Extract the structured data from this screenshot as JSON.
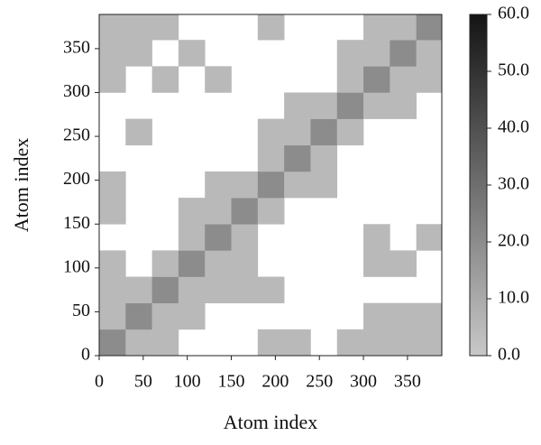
{
  "chart_data": {
    "type": "heatmap",
    "xlabel": "Atom index",
    "ylabel": "Atom index",
    "x_bins": [
      0,
      30,
      60,
      90,
      120,
      150,
      180,
      210,
      240,
      270,
      300,
      330,
      360,
      389
    ],
    "y_bins": [
      0,
      30,
      60,
      90,
      120,
      150,
      180,
      210,
      240,
      270,
      300,
      330,
      360,
      389
    ],
    "z": [
      [
        20,
        5,
        5,
        null,
        null,
        null,
        5,
        5,
        null,
        5,
        5,
        5,
        5
      ],
      [
        5,
        20,
        5,
        5,
        null,
        null,
        null,
        null,
        null,
        null,
        5,
        5,
        5
      ],
      [
        5,
        5,
        20,
        5,
        5,
        5,
        5,
        null,
        null,
        null,
        null,
        null,
        null
      ],
      [
        5,
        null,
        5,
        20,
        5,
        5,
        null,
        null,
        null,
        null,
        5,
        5,
        null
      ],
      [
        null,
        null,
        null,
        5,
        20,
        5,
        null,
        null,
        null,
        null,
        5,
        null,
        5
      ],
      [
        5,
        null,
        null,
        5,
        5,
        20,
        5,
        null,
        null,
        null,
        null,
        null,
        null
      ],
      [
        5,
        null,
        null,
        null,
        5,
        5,
        20,
        5,
        5,
        null,
        null,
        null,
        null
      ],
      [
        null,
        null,
        null,
        null,
        null,
        null,
        5,
        20,
        5,
        null,
        null,
        null,
        null
      ],
      [
        null,
        5,
        null,
        null,
        null,
        null,
        5,
        5,
        20,
        5,
        null,
        null,
        null
      ],
      [
        null,
        null,
        null,
        null,
        null,
        null,
        null,
        5,
        5,
        20,
        5,
        5,
        null
      ],
      [
        5,
        null,
        5,
        null,
        5,
        null,
        null,
        null,
        null,
        5,
        20,
        5,
        5
      ],
      [
        5,
        5,
        null,
        5,
        null,
        null,
        null,
        null,
        null,
        5,
        5,
        20,
        5
      ],
      [
        5,
        5,
        5,
        null,
        null,
        null,
        5,
        null,
        null,
        null,
        5,
        5,
        20
      ]
    ],
    "xlim": [
      0,
      389
    ],
    "ylim": [
      0,
      389
    ],
    "xticks": [
      0,
      50,
      100,
      150,
      200,
      250,
      300,
      350
    ],
    "yticks": [
      0,
      50,
      100,
      150,
      200,
      250,
      300,
      350
    ],
    "zlim": [
      0,
      60
    ],
    "zticks": [
      {
        "value": 0,
        "label": "0.0"
      },
      {
        "value": 10,
        "label": "10.0"
      },
      {
        "value": 20,
        "label": "20.0"
      },
      {
        "value": 30,
        "label": "30.0"
      },
      {
        "value": 40,
        "label": "40.0"
      },
      {
        "value": 50,
        "label": "50.0"
      },
      {
        "value": 60,
        "label": "60.0"
      }
    ],
    "colormap": [
      "#c8c8c8",
      "#141414"
    ]
  }
}
